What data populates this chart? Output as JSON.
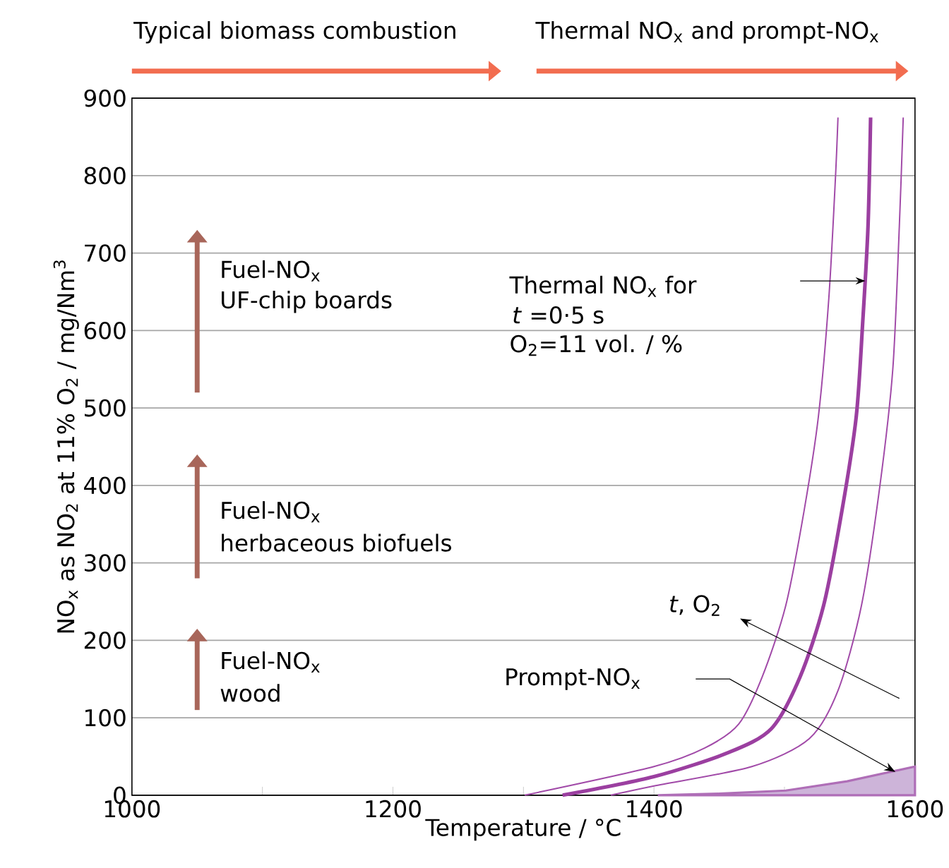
{
  "chart_data": {
    "type": "line",
    "xlabel": "Temperature / °C",
    "ylabel": "NO$_{x}$ as NO$_{2}$ at 11% O$_{2}$ / mg/Nm$^{3}$",
    "xlim": [
      1000,
      1600
    ],
    "ylim": [
      0,
      900
    ],
    "xticks": [
      1000,
      {
        "value": 1100,
        "label": null
      },
      1200,
      {
        "value": 1300,
        "label": null
      },
      1400,
      {
        "value": 1500,
        "label": null
      },
      1600
    ],
    "yticks": [
      0,
      100,
      200,
      300,
      400,
      500,
      600,
      700,
      800,
      900
    ],
    "grid": "y",
    "series": [
      {
        "color": "#a14aa8",
        "x": [
          1301,
          1400,
          1439,
          1465,
          1483,
          1501,
          1515,
          1526,
          1534,
          1539,
          1541
        ],
        "values": [
          0,
          37,
          61,
          92,
          153,
          245,
          367,
          489,
          642,
          795,
          875
        ]
      },
      {
        "color": "#9b3fa0",
        "x": [
          1330,
          1400,
          1457,
          1490,
          1512,
          1530,
          1544,
          1555,
          1560,
          1564,
          1566
        ],
        "values": [
          0,
          24,
          55,
          86,
          153,
          245,
          367,
          489,
          612,
          734,
          875
        ]
      },
      {
        "color": "#a14aa8",
        "x": [
          1367,
          1400,
          1475,
          1519,
          1541,
          1559,
          1573,
          1583,
          1588,
          1591
        ],
        "values": [
          0,
          12,
          37,
          73,
          135,
          245,
          398,
          550,
          734,
          875
        ]
      },
      {
        "type": "area",
        "color": "#cdb4d9",
        "x": [
          1403,
          1450,
          1501,
          1548,
          1600
        ],
        "values": [
          0,
          2,
          6,
          18,
          37
        ]
      }
    ],
    "annotations": [
      "Typical biomass combustion",
      "Thermal NO$_{x}$ and prompt-NO$_{x}$",
      "Fuel-NO$_{x}$",
      "UF-chip boards",
      "Fuel-NO$_{x}$",
      "herbaceous biofuels",
      "Fuel-NO$_{x}$",
      "wood",
      "Thermal NO$_{x}$ for",
      "*t* =0·5 s",
      "O$_{2}$=11 vol. / %",
      "*t*, O$_{2}$",
      "Prompt-NO$_{x}$"
    ]
  }
}
